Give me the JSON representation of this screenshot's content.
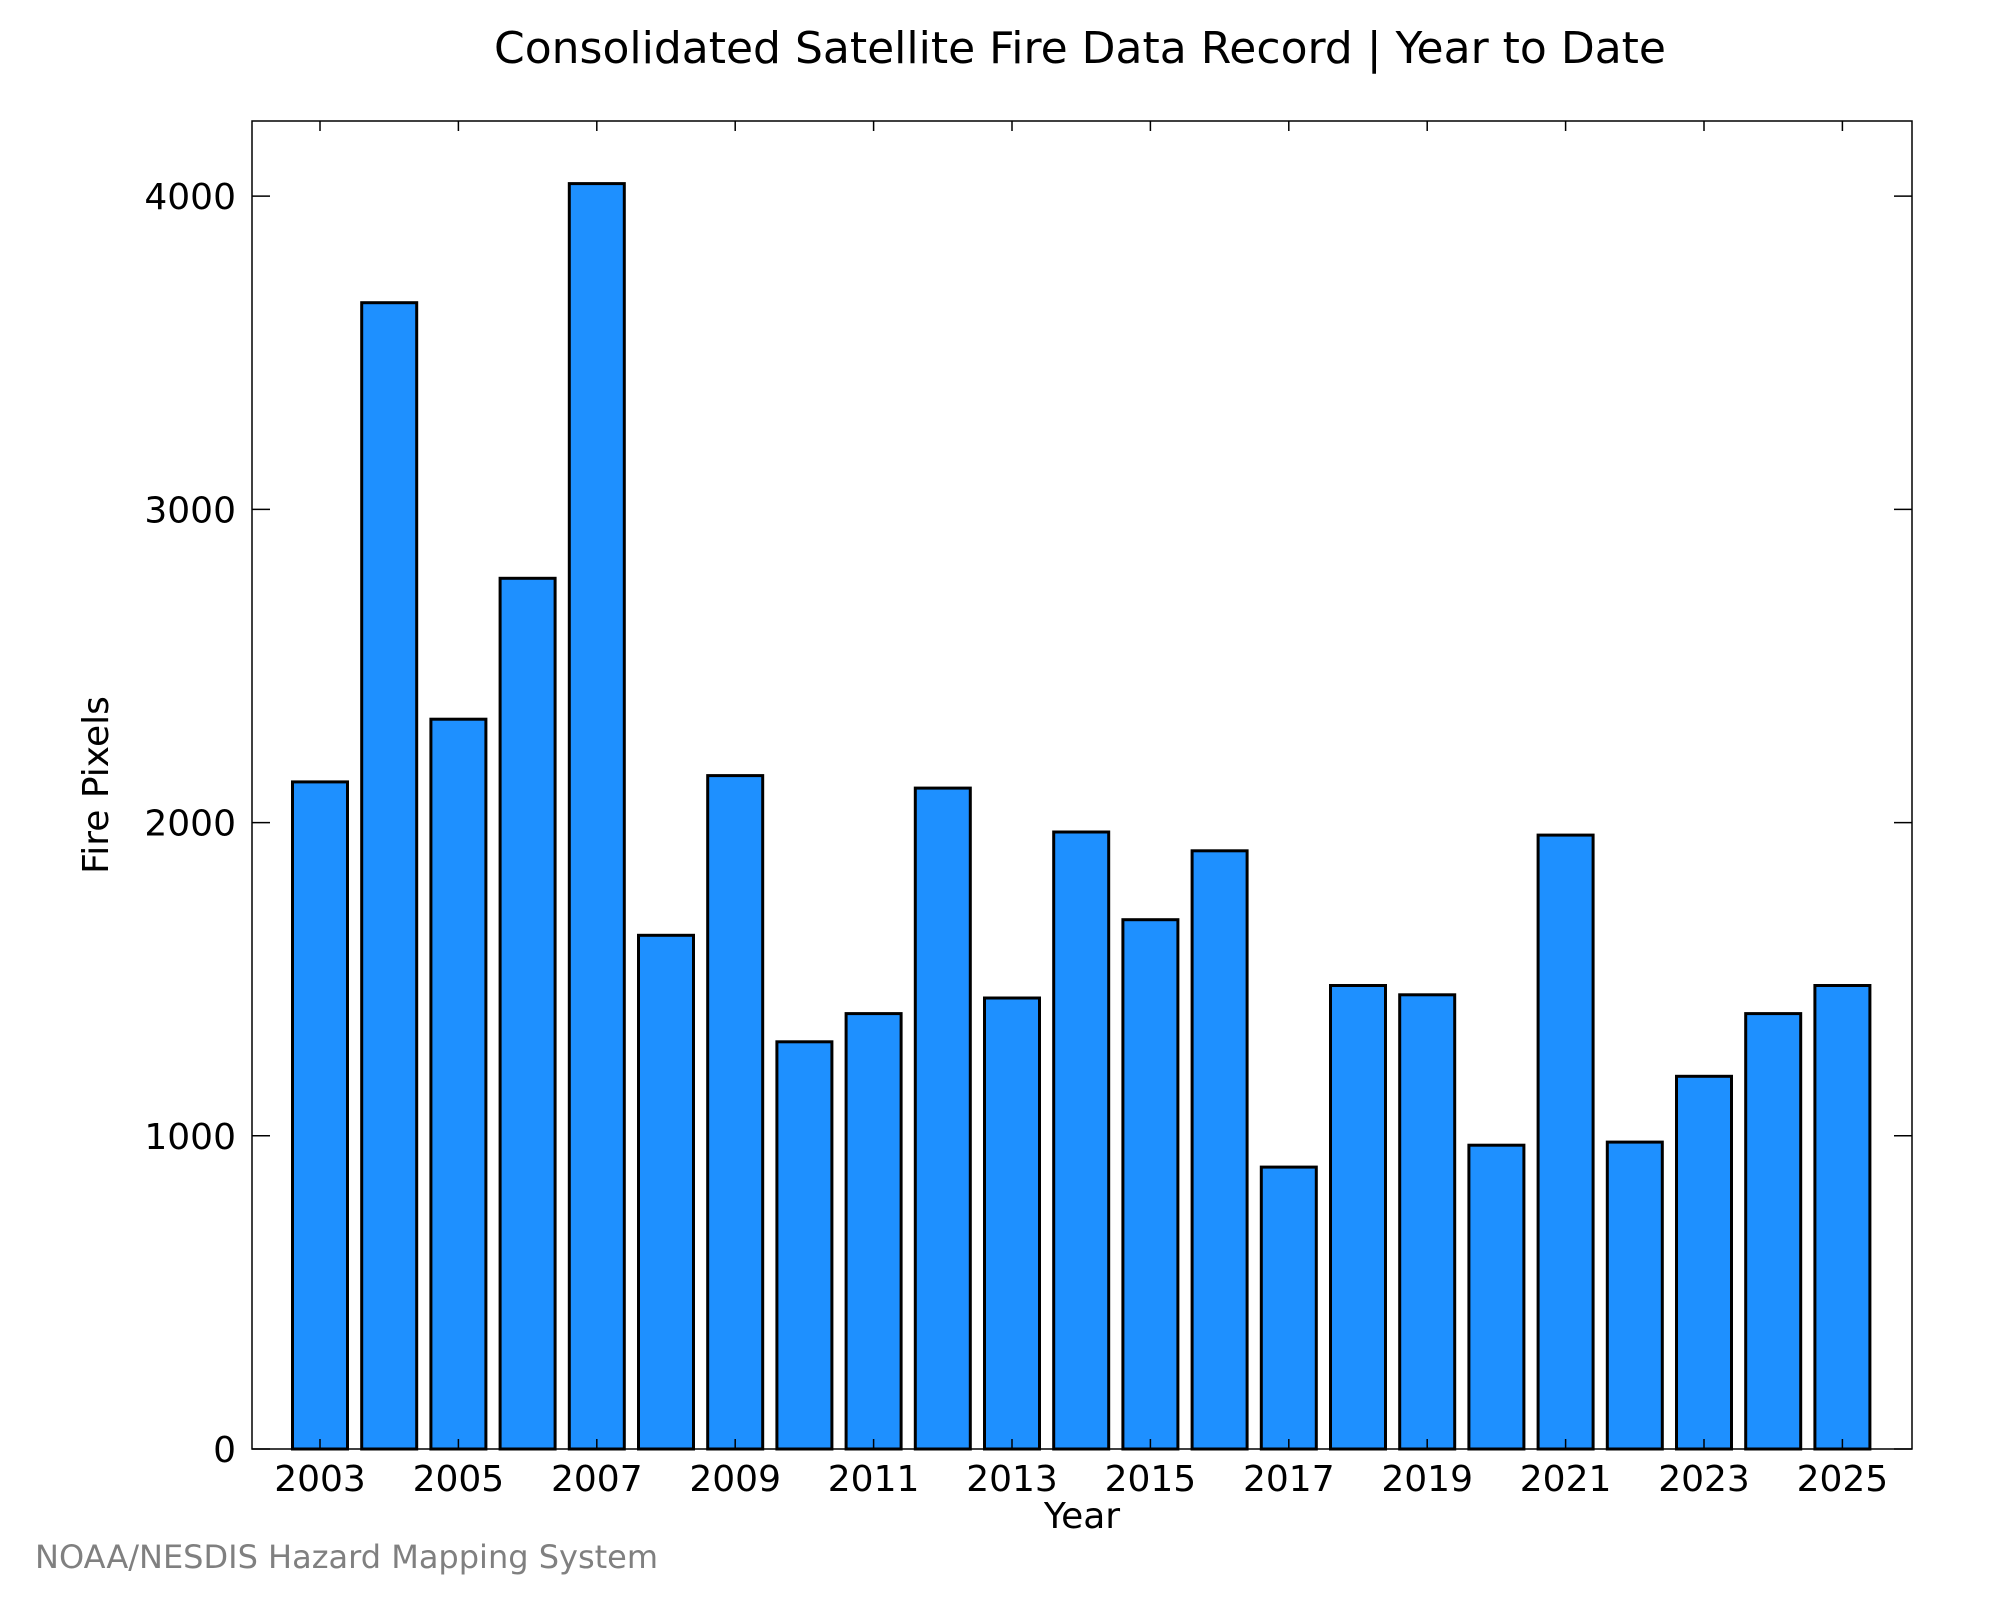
{
  "chart_data": {
    "type": "bar",
    "title": "Consolidated Satellite Fire Data Record | Year to Date",
    "xlabel": "Year",
    "ylabel": "Fire Pixels",
    "categories": [
      "2003",
      "2004",
      "2005",
      "2006",
      "2007",
      "2008",
      "2009",
      "2010",
      "2011",
      "2012",
      "2013",
      "2014",
      "2015",
      "2016",
      "2017",
      "2018",
      "2019",
      "2020",
      "2021",
      "2022",
      "2023",
      "2024",
      "2025"
    ],
    "values": [
      2130,
      3660,
      2330,
      2780,
      4040,
      1640,
      2150,
      1300,
      1390,
      2110,
      1440,
      1970,
      1690,
      1910,
      900,
      1480,
      1450,
      970,
      1960,
      980,
      1190,
      1390,
      1480
    ],
    "x_tick_labels": [
      "2003",
      "2005",
      "2007",
      "2009",
      "2011",
      "2013",
      "2015",
      "2017",
      "2019",
      "2021",
      "2023",
      "2025"
    ],
    "y_tick_labels": [
      "0",
      "1000",
      "2000",
      "3000",
      "4000"
    ],
    "y_ticks": [
      0,
      1000,
      2000,
      3000,
      4000
    ],
    "ylim": [
      0,
      4240
    ],
    "grid": false,
    "legend": "none",
    "bar_color": "#1e90ff",
    "edge_color": "#000000"
  },
  "footer": {
    "credit": "NOAA/NESDIS Hazard Mapping System"
  }
}
